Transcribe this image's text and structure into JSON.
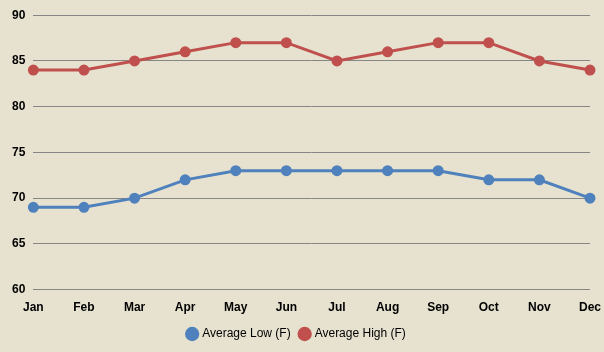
{
  "chart_data": {
    "type": "line",
    "categories": [
      "Jan",
      "Feb",
      "Mar",
      "Apr",
      "May",
      "Jun",
      "Jul",
      "Aug",
      "Sep",
      "Oct",
      "Nov",
      "Dec"
    ],
    "series": [
      {
        "name": "Average Low (F)",
        "color": "#4f81bd",
        "marker": "circle",
        "line_style": "solid",
        "values": [
          69,
          69,
          70,
          72,
          73,
          73,
          73,
          73,
          73,
          72,
          72,
          70
        ]
      },
      {
        "name": "Average High (F)",
        "color": "#c0504d",
        "marker": "circle",
        "line_style": "solid",
        "values": [
          84,
          84,
          85,
          86,
          87,
          87,
          85,
          86,
          87,
          87,
          85,
          84
        ]
      }
    ],
    "ylim": [
      60,
      90
    ],
    "yticks": [
      60,
      65,
      70,
      75,
      80,
      85,
      90
    ],
    "grid": true,
    "legend": "bottom"
  }
}
